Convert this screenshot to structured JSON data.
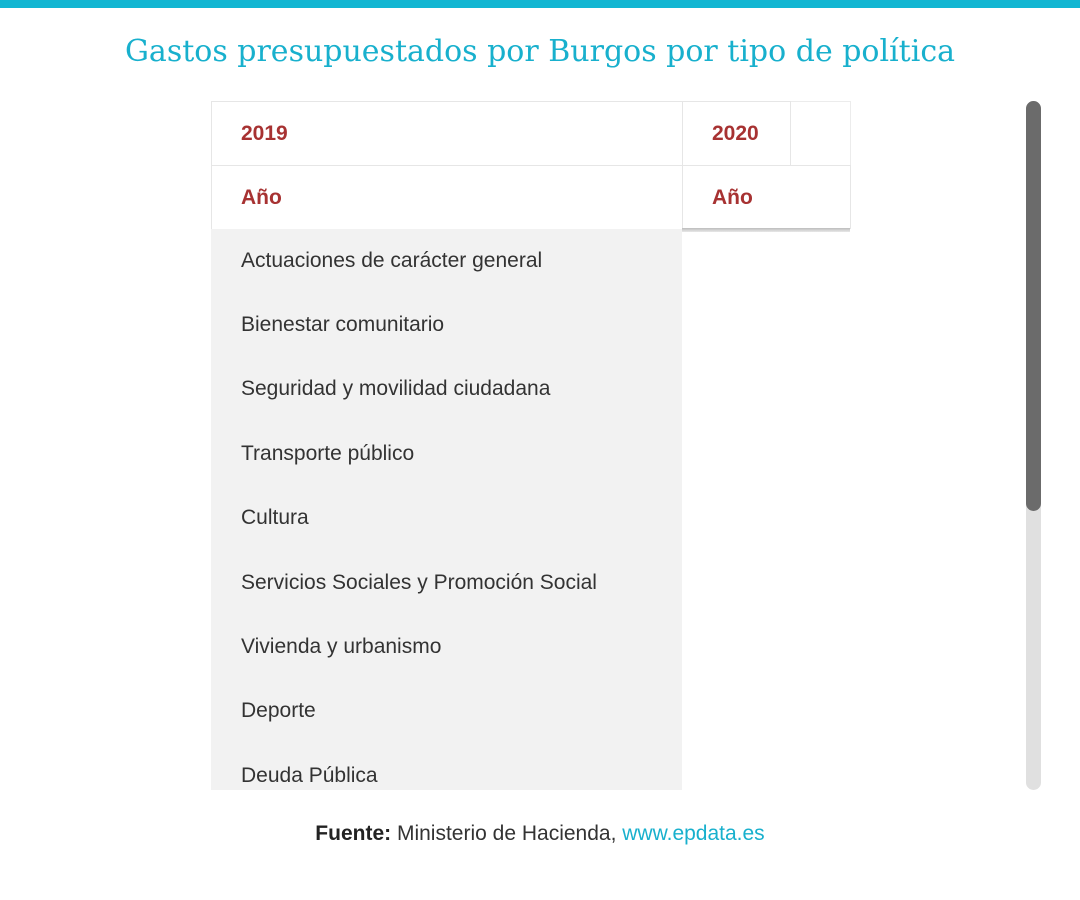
{
  "header": {
    "title": "Gastos presupuestados por Burgos por tipo de política"
  },
  "table": {
    "columns": [
      {
        "year": "2019",
        "subheader": "Año"
      },
      {
        "year": "2020",
        "subheader": "Año"
      }
    ],
    "rows": [
      "Actuaciones de carácter general",
      "Bienestar comunitario",
      "Seguridad y movilidad ciudadana",
      "Transporte público",
      "Cultura",
      "Servicios Sociales y Promoción Social",
      "Vivienda y urbanismo",
      "Deporte",
      "Deuda Pública"
    ]
  },
  "footer": {
    "source_label": "Fuente:",
    "source_text": "Ministerio de Hacienda,",
    "source_link": "www.epdata.es"
  },
  "colors": {
    "accent": "#12b6d2",
    "header_text": "#a73232",
    "row_background": "#f2f2f2"
  }
}
